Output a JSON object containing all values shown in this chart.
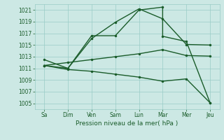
{
  "background_color": "#cce8e4",
  "grid_color": "#99ccc6",
  "line_color": "#1a5c2a",
  "xlabel": "Pression niveau de la mer( hPa )",
  "xtick_labels": [
    "Sa",
    "Dim",
    "Ven",
    "Sam",
    "Lun",
    "Mar",
    "Mer",
    "Jeu"
  ],
  "x_positions": [
    0,
    1,
    2,
    3,
    4,
    5,
    6,
    7
  ],
  "ylim": [
    1004,
    1022
  ],
  "yticks": [
    1005,
    1007,
    1009,
    1011,
    1013,
    1015,
    1017,
    1019,
    1021
  ],
  "line1_x": [
    0,
    1,
    2,
    3,
    4,
    5,
    5,
    6,
    7
  ],
  "line1_y": [
    1012.5,
    1011.0,
    1016.6,
    1016.6,
    1021.0,
    1021.5,
    1016.5,
    1015.6,
    1005.1
  ],
  "line2_x": [
    0,
    1,
    2,
    3,
    4,
    5,
    6,
    7
  ],
  "line2_y": [
    1011.5,
    1011.0,
    1016.1,
    1018.9,
    1021.2,
    1019.5,
    1015.1,
    1015.0
  ],
  "line3_x": [
    0,
    1,
    2,
    3,
    4,
    5,
    6,
    7
  ],
  "line3_y": [
    1011.5,
    1012.0,
    1012.5,
    1013.0,
    1013.5,
    1014.2,
    1013.2,
    1013.1
  ],
  "line4_x": [
    0,
    1,
    2,
    3,
    4,
    5,
    6,
    7
  ],
  "line4_y": [
    1011.5,
    1010.8,
    1010.5,
    1010.0,
    1009.5,
    1008.8,
    1009.2,
    1005.1
  ],
  "marker_size": 2.5,
  "line_width": 1.0
}
